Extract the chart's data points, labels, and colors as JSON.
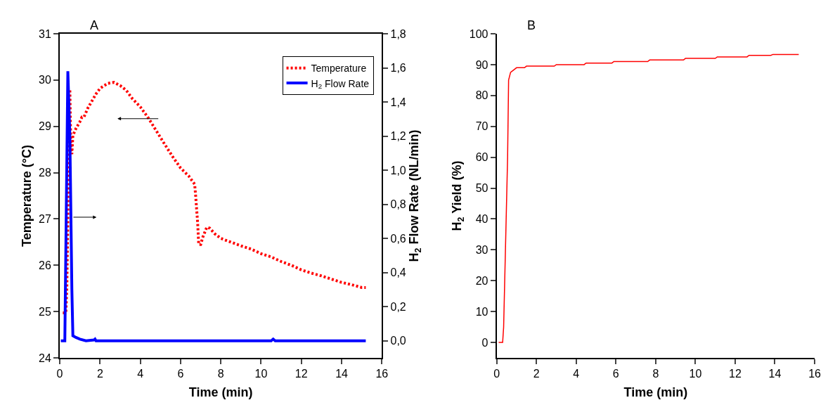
{
  "chart_data": [
    {
      "type": "line",
      "title": "A",
      "xlabel": "Time (min)",
      "ylabel": "Temperature (°C)",
      "y2label": "H$_{2}$ Flow Rate (NL/min)",
      "xlim": [
        0,
        16
      ],
      "xticks": [
        0,
        2,
        4,
        6,
        8,
        10,
        12,
        14,
        16
      ],
      "ylim": [
        24,
        31
      ],
      "yticks": [
        24,
        25,
        26,
        27,
        28,
        29,
        30,
        31
      ],
      "y2lim": [
        -0.1,
        1.8
      ],
      "y2ticks": [
        {
          "value": 0,
          "label": "0,0"
        },
        {
          "value": 0.2,
          "label": "0,2"
        },
        {
          "value": 0.4,
          "label": "0,4"
        },
        {
          "value": 0.6,
          "label": "0,6"
        },
        {
          "value": 0.8,
          "label": "0,8"
        },
        {
          "value": 1.0,
          "label": "1,0"
        },
        {
          "value": 1.2,
          "label": "1,2"
        },
        {
          "value": 1.4,
          "label": "1,4"
        },
        {
          "value": 1.6,
          "label": "1,6"
        },
        {
          "value": 1.8,
          "label": "1,8"
        }
      ],
      "legend": "top right",
      "series": [
        {
          "name": "Temperature",
          "color": "#ff0000",
          "line_style": "dotted",
          "x": [
            0.15,
            0.3,
            0.35,
            0.4,
            0.45,
            0.5,
            0.55,
            0.6,
            0.65,
            0.8,
            1.0,
            1.1,
            1.2,
            1.4,
            1.6,
            1.8,
            2.0,
            2.2,
            2.4,
            2.7,
            3.0,
            3.3,
            3.6,
            4.0,
            4.4,
            4.8,
            5.2,
            5.6,
            6.0,
            6.4,
            6.7,
            6.75,
            6.85,
            6.9,
            7.0,
            7.1,
            7.3,
            7.45,
            7.7,
            8.0,
            8.5,
            9.0,
            9.5,
            10.0,
            10.5,
            11.0,
            11.5,
            12.0,
            12.5,
            13.0,
            13.5,
            14.0,
            14.5,
            15.0,
            15.2
          ],
          "values": [
            24.97,
            24.97,
            25.5,
            27.0,
            29.2,
            29.8,
            28.5,
            28.4,
            28.8,
            28.95,
            29.1,
            29.2,
            29.2,
            29.4,
            29.55,
            29.7,
            29.82,
            29.88,
            29.93,
            29.95,
            29.88,
            29.78,
            29.6,
            29.42,
            29.18,
            28.9,
            28.62,
            28.35,
            28.1,
            27.93,
            27.75,
            27.5,
            26.9,
            26.45,
            26.45,
            26.6,
            26.82,
            26.8,
            26.68,
            26.58,
            26.5,
            26.42,
            26.35,
            26.25,
            26.18,
            26.08,
            26.0,
            25.9,
            25.83,
            25.77,
            25.7,
            25.63,
            25.58,
            25.52,
            25.52
          ]
        },
        {
          "name": "H$_{2}$ Flow Rate",
          "color": "#0000ff",
          "line_style": "solid",
          "axis": "y2",
          "x": [
            0.05,
            0.25,
            0.4,
            0.5,
            0.6,
            0.65,
            0.8,
            1.0,
            1.3,
            1.7,
            1.75,
            1.8,
            10.5,
            10.6,
            10.7,
            15.2
          ],
          "values": [
            0,
            0,
            1.58,
            1.2,
            0.3,
            0.03,
            0.02,
            0.01,
            0,
            0.005,
            0.01,
            0,
            0,
            0.01,
            0,
            0
          ]
        }
      ]
    },
    {
      "type": "line",
      "title": "B",
      "xlabel": "Time (min)",
      "ylabel": "H$_{2}$ Yield (%)",
      "xlim": [
        0,
        16
      ],
      "xticks": [
        0,
        2,
        4,
        6,
        8,
        10,
        12,
        14,
        16
      ],
      "ylim": [
        -5,
        100
      ],
      "yticks": [
        0,
        10,
        20,
        30,
        40,
        50,
        60,
        70,
        80,
        90,
        100
      ],
      "series": [
        {
          "color": "#ff0000",
          "line_style": "solid",
          "x": [
            0.1,
            0.3,
            0.35,
            0.55,
            0.6,
            0.7,
            1.0,
            1.4,
            1.5,
            2.9,
            3.0,
            4.4,
            4.5,
            5.8,
            5.9,
            7.6,
            7.7,
            9.4,
            9.5,
            11.0,
            11.1,
            12.6,
            12.7,
            13.8,
            13.9,
            15.2
          ],
          "values": [
            0,
            0,
            5,
            60,
            85,
            87.5,
            89,
            89,
            89.5,
            89.5,
            90,
            90,
            90.5,
            90.5,
            91,
            91,
            91.5,
            91.5,
            92,
            92,
            92.5,
            92.5,
            93,
            93,
            93.3,
            93.3
          ]
        }
      ]
    }
  ]
}
